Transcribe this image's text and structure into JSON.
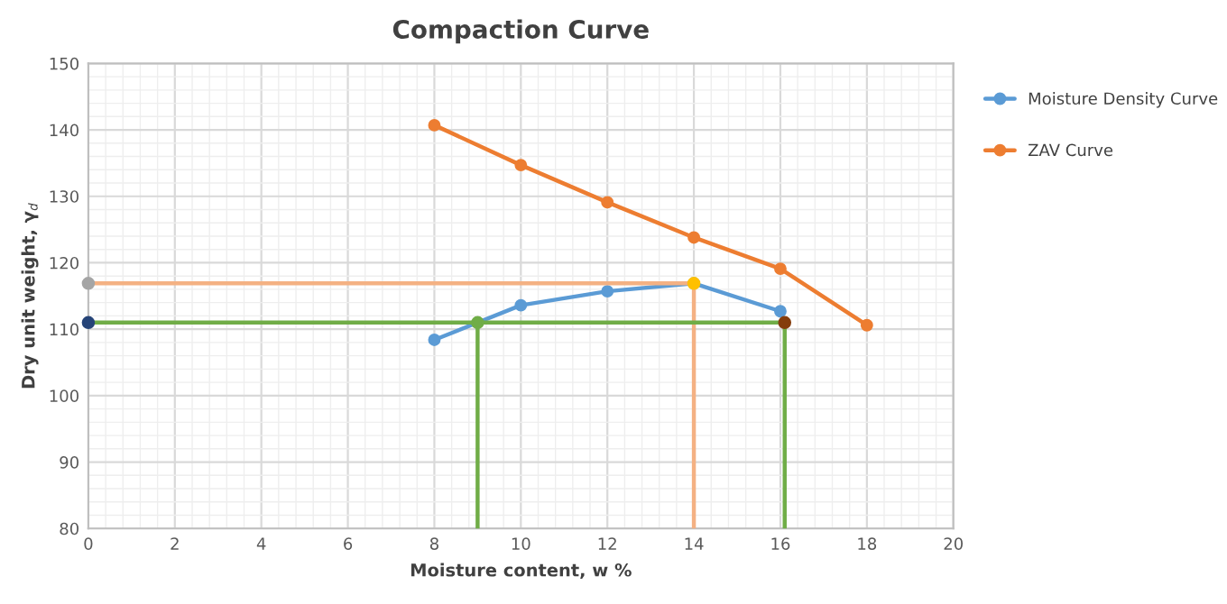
{
  "chart_data": {
    "type": "line",
    "title": "Compaction Curve",
    "xlabel": "Moisture content, w %",
    "ylabel": "Dry unit weight, γ$_{d}$",
    "xlim": [
      0,
      20
    ],
    "xticks": [
      0,
      2,
      4,
      6,
      8,
      10,
      12,
      14,
      16,
      18,
      20
    ],
    "ylim": [
      80,
      150
    ],
    "yticks": [
      80,
      90,
      100,
      110,
      120,
      130,
      140,
      150
    ],
    "grid": true,
    "legend": "right",
    "marker": "circle",
    "series": [
      {
        "name": "Moisture Density Curve",
        "color": "#5b9bd5",
        "x": [
          8,
          10,
          12,
          14,
          16
        ],
        "values": [
          108.4,
          113.6,
          115.7,
          116.9,
          112.7
        ]
      },
      {
        "name": "ZAV Curve",
        "color": "#ed7d31",
        "x": [
          8,
          10,
          12,
          14,
          16,
          18
        ],
        "values": [
          140.7,
          134.7,
          129.1,
          123.8,
          119.1,
          110.6
        ]
      },
      {
        "type": "line",
        "marker": "none",
        "color": "#f4b183",
        "x": [
          0,
          14,
          14
        ],
        "values": [
          116.9,
          116.9,
          80
        ]
      },
      {
        "type": "line",
        "marker": "none",
        "color": "#70ad47",
        "x": [
          0,
          16.1
        ],
        "values": [
          111,
          111
        ]
      },
      {
        "type": "line",
        "marker": "none",
        "color": "#70ad47",
        "x": [
          9,
          9
        ],
        "values": [
          111,
          80
        ]
      },
      {
        "type": "line",
        "marker": "none",
        "color": "#70ad47",
        "x": [
          16.1,
          16.1
        ],
        "values": [
          111,
          80
        ]
      },
      {
        "type": "scatter",
        "x": [
          0,
          14,
          0,
          9,
          16.1
        ],
        "values": [
          116.9,
          116.9,
          111,
          111,
          111
        ],
        "colors": [
          "#a5a5a5",
          "#ffc000",
          "#264478",
          "#70ad47",
          "#843c0c"
        ]
      }
    ]
  }
}
